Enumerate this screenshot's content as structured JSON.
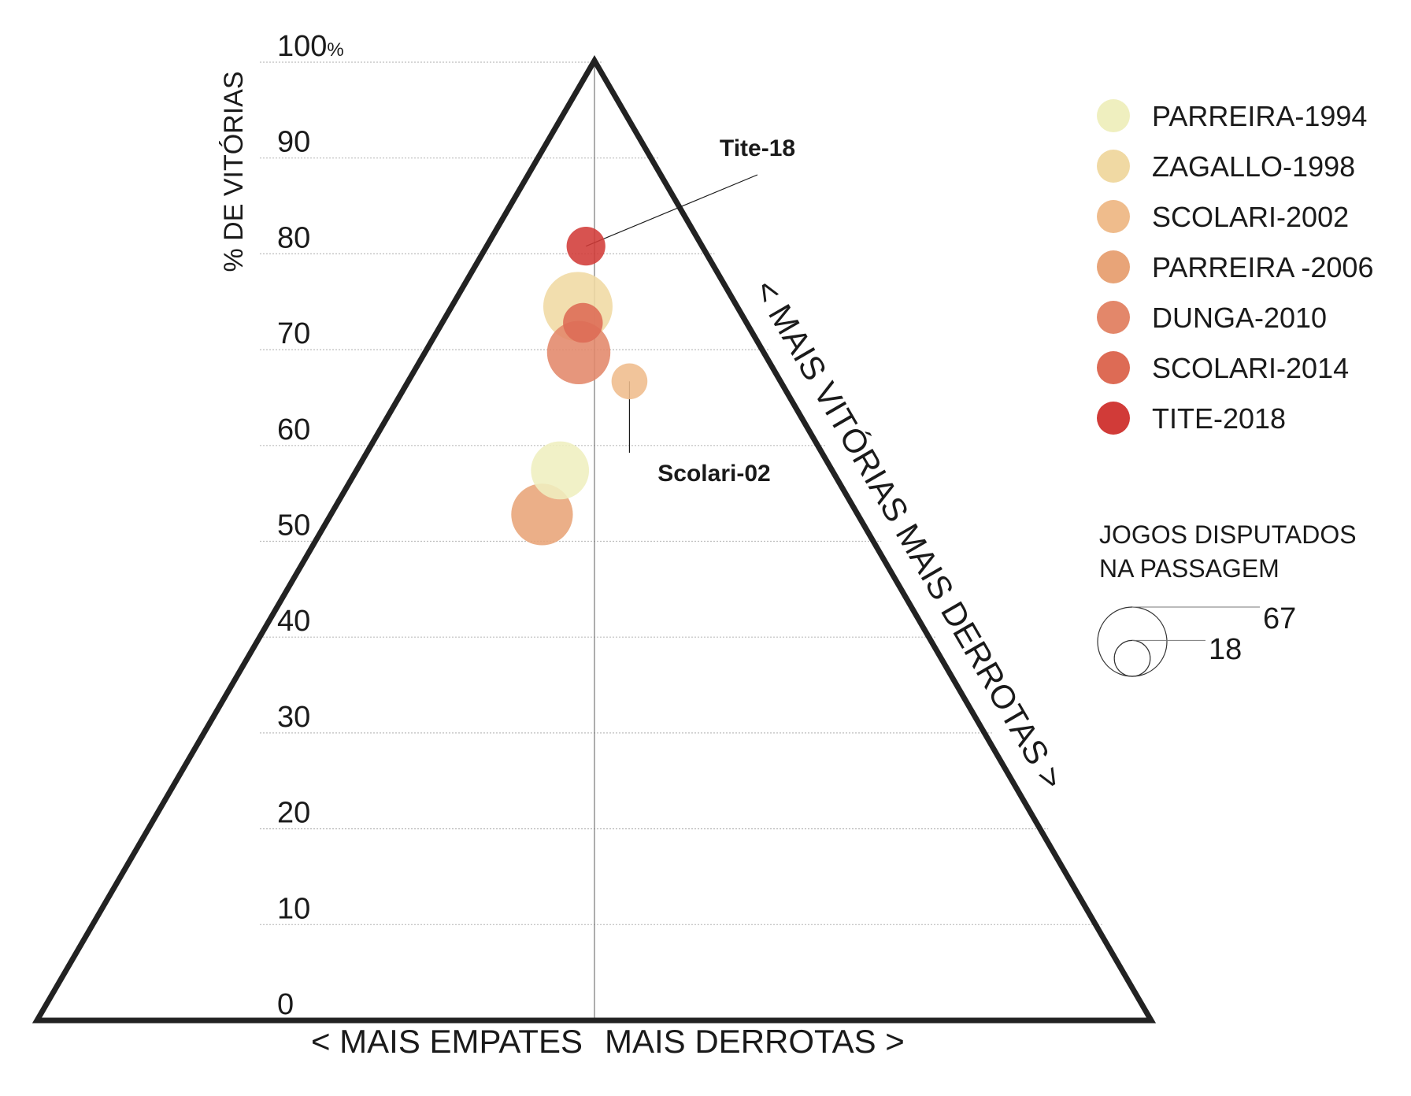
{
  "chart_data": {
    "type": "scatter",
    "subtype": "ternary-bubble",
    "y_axis_title": "% DE VITÓRIAS",
    "y_ticks": [
      "0",
      "10",
      "20",
      "30",
      "40",
      "50",
      "60",
      "70",
      "80",
      "90",
      "100"
    ],
    "y_tick_suffix": "%",
    "ylim": [
      0,
      100
    ],
    "grid": true,
    "bottom_label_left": "< MAIS EMPATES",
    "bottom_label_right": "MAIS DERROTAS >",
    "right_edge_label": "< MAIS VITÓRIAS   MAIS DERROTAS >",
    "series": [
      {
        "name": "PARREIRA-1994",
        "color": "#efefbf",
        "wins_pct": 57.4,
        "empates_minus_derrotas": -14.5,
        "jogos": 47
      },
      {
        "name": "ZAGALLO-1998",
        "color": "#f0d9a3",
        "wins_pct": 74.5,
        "empates_minus_derrotas": -11.6,
        "jogos": 67
      },
      {
        "name": "SCOLARI-2002",
        "color": "#efbc8c",
        "wins_pct": 66.7,
        "empates_minus_derrotas": 18.8,
        "jogos": 18
      },
      {
        "name": "PARREIRA -2006",
        "color": "#e8a478",
        "wins_pct": 52.8,
        "empates_minus_derrotas": -19.9,
        "jogos": 53
      },
      {
        "name": "DUNGA-2010",
        "color": "#e3876a",
        "wins_pct": 69.7,
        "empates_minus_derrotas": -9.3,
        "jogos": 56
      },
      {
        "name": "SCOLARI-2014",
        "color": "#dd6b55",
        "wins_pct": 72.8,
        "empates_minus_derrotas": -7.6,
        "jogos": 22
      },
      {
        "name": "TITE-2018",
        "color": "#d13b38",
        "wins_pct": 80.8,
        "empates_minus_derrotas": -7.9,
        "jogos": 21
      }
    ],
    "annotations": [
      {
        "text": "Tite-18",
        "series": "TITE-2018"
      },
      {
        "text": "Scolari-02",
        "series": "SCOLARI-2002"
      }
    ],
    "size_legend": {
      "title_lines": [
        "JOGOS DISPUTADOS",
        "NA PASSAGEM"
      ],
      "values": [
        67,
        18
      ]
    },
    "legend_position": "right"
  }
}
